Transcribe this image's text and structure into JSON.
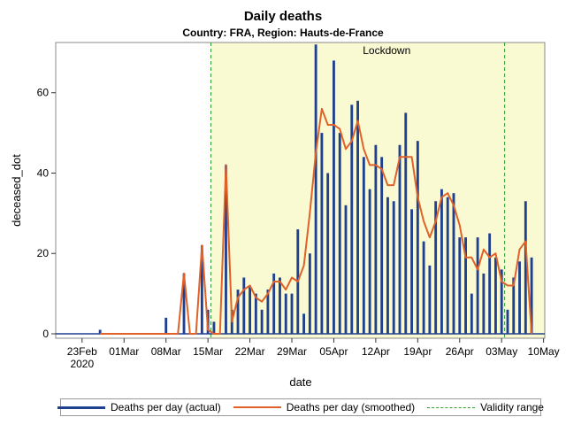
{
  "chart_data": {
    "type": "bar",
    "title": "Daily deaths",
    "subtitle": "Country: FRA, Region: Hauts-de-France",
    "xlabel": "date",
    "ylabel": "deceased_dot",
    "ylim": [
      0,
      72.5
    ],
    "yticks": [
      0,
      20,
      40,
      60
    ],
    "x_start_date": "2020-02-21",
    "xlim_days": [
      0,
      79
    ],
    "xticks": [
      {
        "day": 2,
        "label": "23Feb",
        "label2": "2020"
      },
      {
        "day": 9,
        "label": "01Mar"
      },
      {
        "day": 16,
        "label": "08Mar"
      },
      {
        "day": 23,
        "label": "15Mar"
      },
      {
        "day": 30,
        "label": "22Mar"
      },
      {
        "day": 37,
        "label": "29Mar"
      },
      {
        "day": 44,
        "label": "05Apr"
      },
      {
        "day": 51,
        "label": "12Apr"
      },
      {
        "day": 58,
        "label": "19Apr"
      },
      {
        "day": 65,
        "label": "26Apr"
      },
      {
        "day": 72,
        "label": "03May"
      },
      {
        "day": 79,
        "label": "10May"
      }
    ],
    "lockdown": {
      "label": "Lockdown",
      "start_day": 23.5,
      "end_day": 79
    },
    "validity_range": {
      "start_day": 23.5,
      "end_day": 72.5
    },
    "series": [
      {
        "name": "Deaths per day (actual)",
        "kind": "bar",
        "color": "#1f3f8f",
        "start_day": 5,
        "values": [
          1,
          0,
          0,
          0,
          0,
          0,
          0,
          0,
          0,
          0,
          0,
          4,
          0,
          0,
          15,
          0,
          0,
          22,
          6,
          3,
          0,
          42,
          6,
          11,
          14,
          12,
          10,
          6,
          11,
          15,
          14,
          10,
          10,
          26,
          5,
          20,
          72,
          50,
          40,
          68,
          50,
          32,
          57,
          58,
          44,
          36,
          47,
          44,
          34,
          33,
          47,
          55,
          31,
          48,
          23,
          17,
          33,
          36,
          34,
          35,
          24,
          24,
          10,
          24,
          15,
          25,
          19,
          16,
          6,
          14,
          18,
          33,
          19
        ]
      },
      {
        "name": "Deaths per day (smoothed)",
        "kind": "line",
        "color": "#e0622a",
        "start_day": 5,
        "values": [
          0,
          0,
          0,
          0,
          0,
          0,
          0,
          0,
          0,
          0,
          0,
          0,
          0,
          0,
          15,
          0,
          0,
          22,
          1,
          0,
          0,
          42,
          3,
          9,
          11,
          12,
          9,
          8,
          10,
          13,
          13,
          11,
          14,
          13,
          17,
          30,
          45,
          56,
          52,
          52,
          51,
          46,
          48,
          53,
          46,
          42,
          42,
          41,
          37,
          37,
          44,
          44,
          44,
          34,
          28,
          24,
          28,
          34,
          35,
          32,
          27,
          19,
          19,
          16,
          21,
          19,
          20,
          13,
          12,
          12,
          21,
          23,
          0
        ]
      }
    ],
    "validity_legend": "Validity range"
  }
}
